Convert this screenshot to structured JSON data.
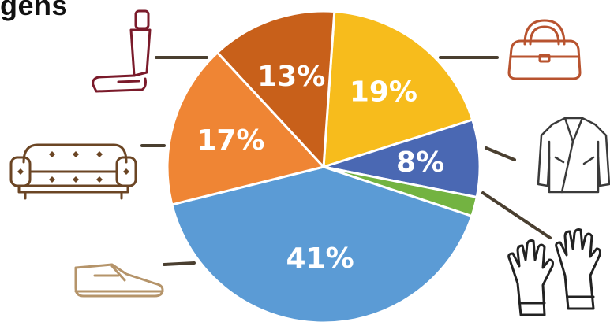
{
  "title": "gens",
  "colors": {
    "background": "#ffffff",
    "leader": "#4a3f30",
    "seat_icon": "#7a1a2a",
    "sofa_icon": "#6b4524",
    "shoe_icon": "#b5946a",
    "bag_icon": "#b8532f",
    "jacket_icon": "#3a3a3a",
    "gloves_icon": "#222222"
  },
  "chart_data": {
    "type": "pie",
    "title": "gens",
    "start_angle_deg": 4,
    "slices": [
      {
        "value": 19,
        "label": "19%",
        "color": "#f7bc1c",
        "icon": "handbag-icon",
        "show_label": true
      },
      {
        "value": 8,
        "label": "8%",
        "color": "#4a68b3",
        "icon": "leather-jacket-icon",
        "show_label": true
      },
      {
        "value": 2,
        "label": "",
        "color": "#73b341",
        "icon": "gloves-icon",
        "show_label": false
      },
      {
        "value": 41,
        "label": "41%",
        "color": "#5b9bd5",
        "icon": "shoe-icon",
        "show_label": true
      },
      {
        "value": 17,
        "label": "17%",
        "color": "#ef8534",
        "icon": "sofa-icon",
        "show_label": true
      },
      {
        "value": 13,
        "label": "13%",
        "color": "#c8601a",
        "icon": "car-seat-icon",
        "show_label": true
      }
    ]
  }
}
